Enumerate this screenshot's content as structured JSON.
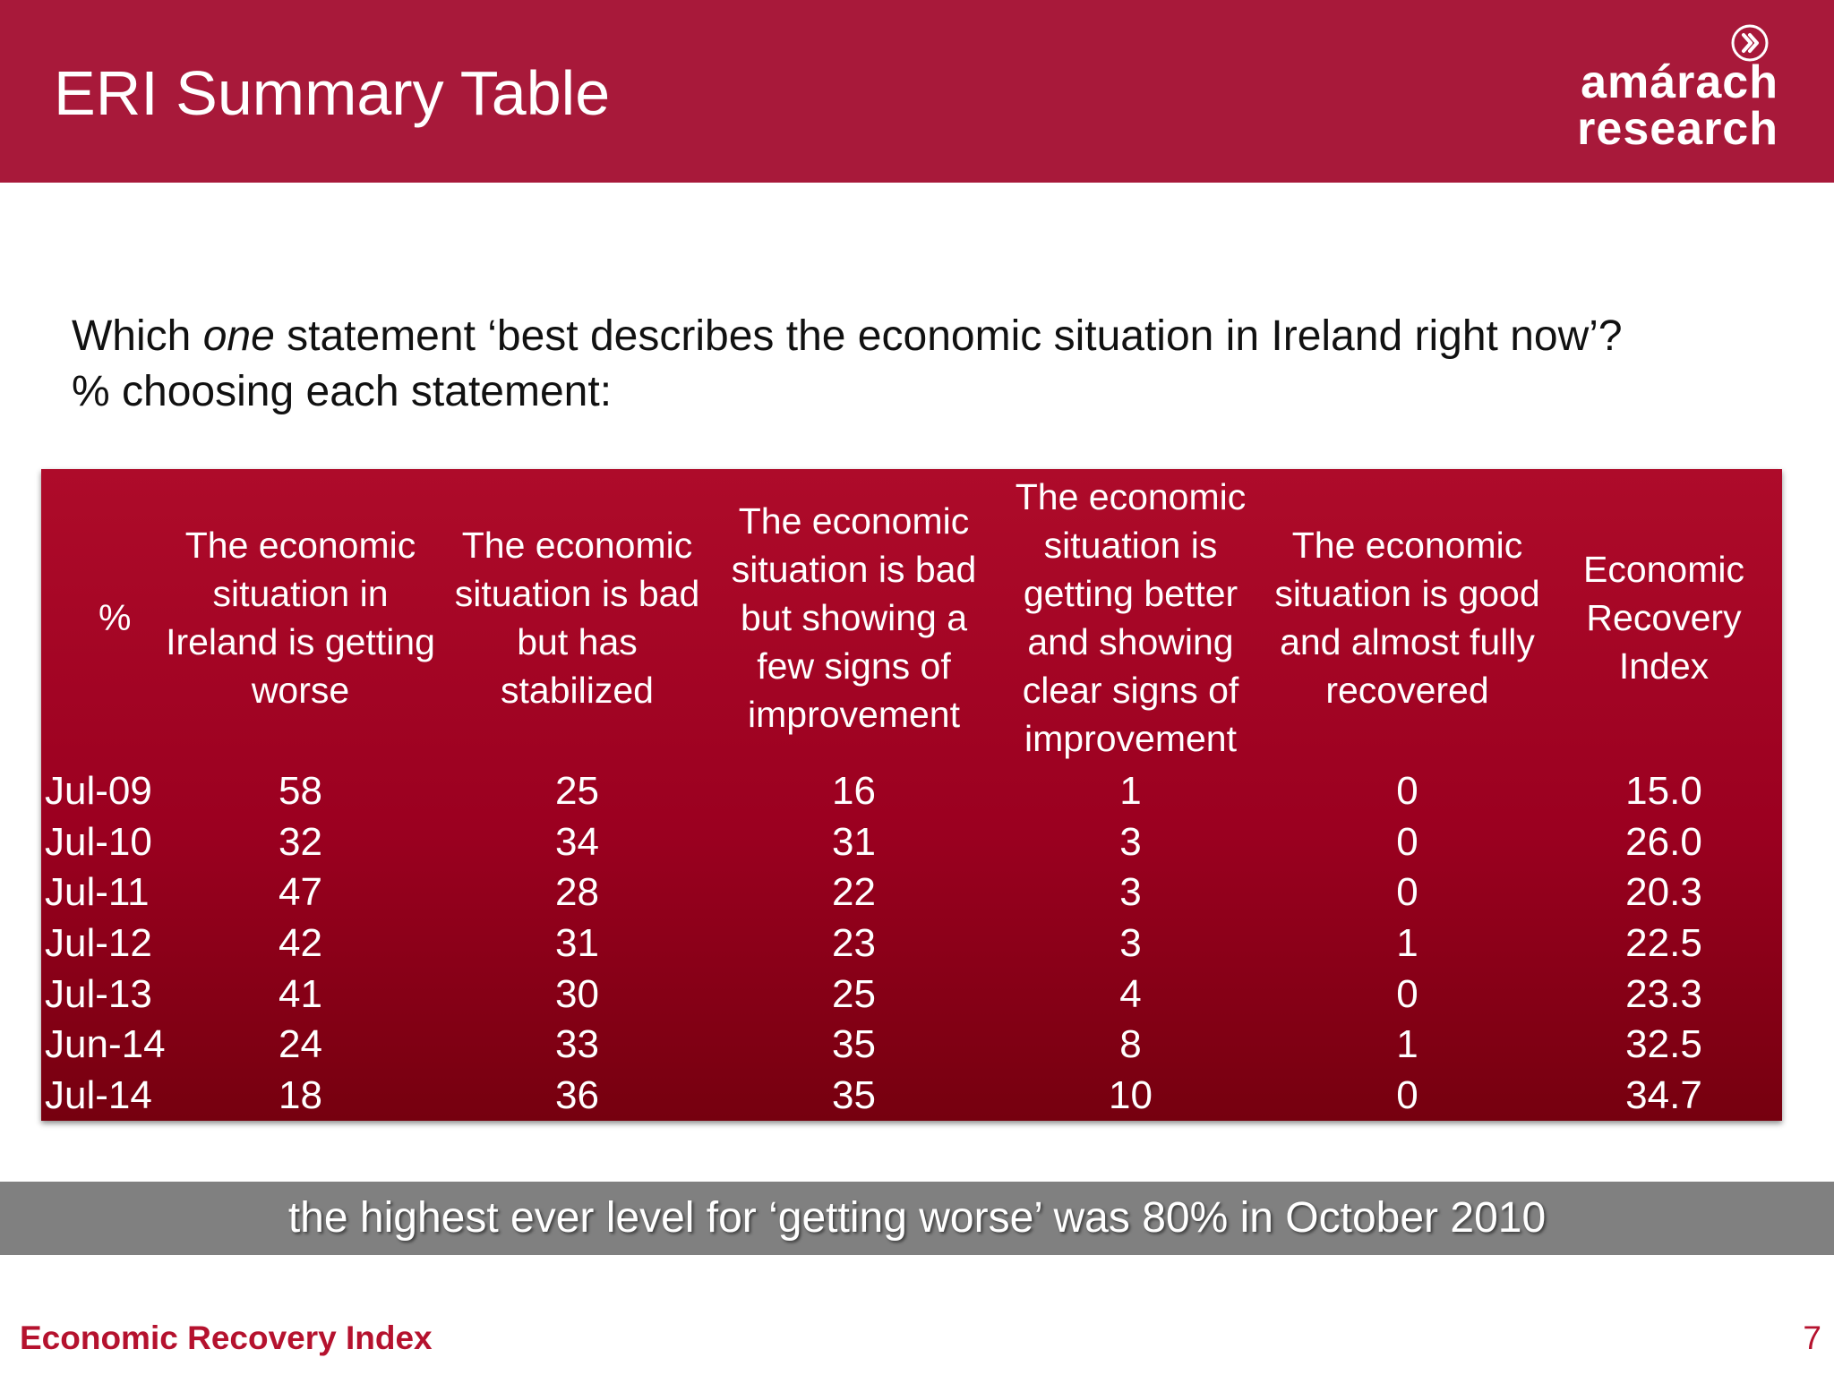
{
  "header": {
    "title": "ERI Summary Table",
    "logo_line1": "amárach",
    "logo_line2": "research",
    "logo_icon": "chevron-circle-icon"
  },
  "question": {
    "line1_before": "Which ",
    "line1_emphasis": "one",
    "line1_after": " statement ‘best describes the economic situation in Ireland right now’?",
    "line2": "% choosing each statement:"
  },
  "table": {
    "headers": [
      "%",
      "The economic situation in Ireland is getting worse",
      "The economic situation is bad but has stabilized",
      "The economic situation is bad but showing a few signs of improvement",
      "The economic situation is getting better and showing clear signs of improvement",
      "The economic situation is good and almost fully recovered",
      "Economic Recovery Index"
    ],
    "rows": [
      [
        "Jul-09",
        "58",
        "25",
        "16",
        "1",
        "0",
        "15.0"
      ],
      [
        "Jul-10",
        "32",
        "34",
        "31",
        "3",
        "0",
        "26.0"
      ],
      [
        "Jul-11",
        "47",
        "28",
        "22",
        "3",
        "0",
        "20.3"
      ],
      [
        "Jul-12",
        "42",
        "31",
        "23",
        "3",
        "1",
        "22.5"
      ],
      [
        "Jul-13",
        "41",
        "30",
        "25",
        "4",
        "0",
        "23.3"
      ],
      [
        "Jun-14",
        "24",
        "33",
        "35",
        "8",
        "1",
        "32.5"
      ],
      [
        "Jul-14",
        "18",
        "36",
        "35",
        "10",
        "0",
        "34.7"
      ]
    ]
  },
  "callout": "the highest ever level for ‘getting worse’ was 80% in October 2010",
  "footer": {
    "left": "Economic Recovery Index",
    "page_number": "7"
  },
  "colors": {
    "header_bg": "#a8193a",
    "table_top": "#ae0b2a",
    "table_bottom": "#76000f",
    "callout_bg": "#808080",
    "footer_text": "#b5122e"
  }
}
